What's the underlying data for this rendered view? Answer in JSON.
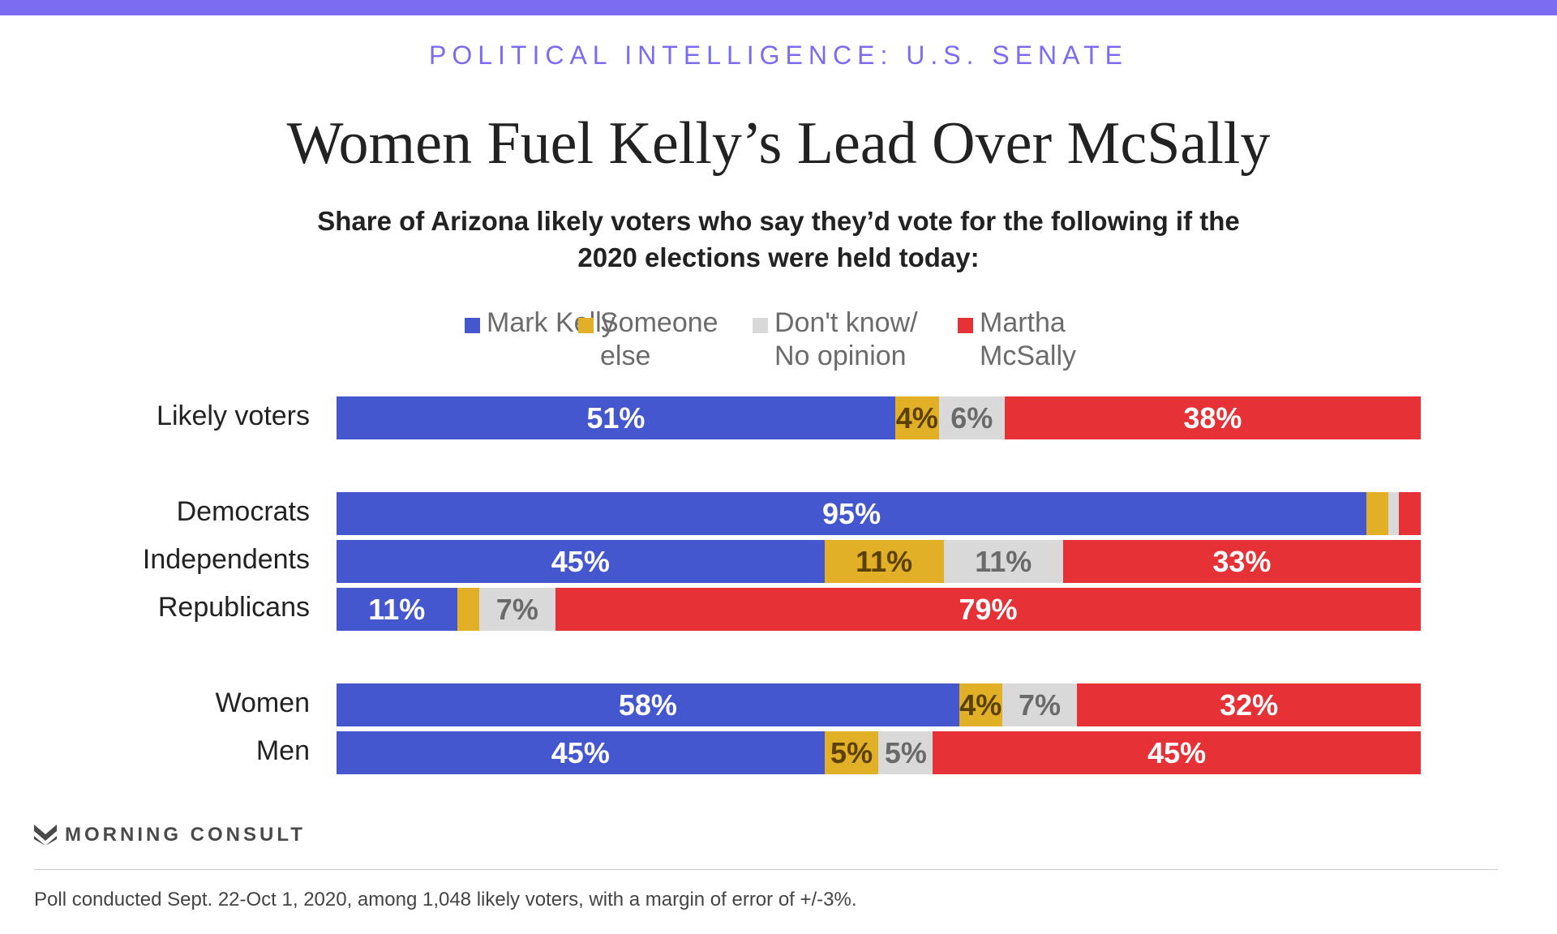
{
  "kicker": "POLITICAL INTELLIGENCE: U.S. SENATE",
  "title": "Women Fuel Kelly’s Lead Over McSally",
  "subtitle": "Share of Arizona likely voters who say they’d vote for the following if the 2020 elections were held today:",
  "logo_text": "MORNING CONSULT",
  "footnote": "Poll conducted Sept. 22-Oct 1, 2020, among 1,048 likely voters, with a margin of error of +/-3%.",
  "colors": {
    "accent": "#7b6cf2",
    "kelly": "#4457ce",
    "someone_else": "#e2b026",
    "dont_know": "#d9d9d9",
    "mcsally": "#e63136"
  },
  "chart_data": {
    "type": "bar",
    "orientation": "horizontal-stacked",
    "legend_placement": "top",
    "grid": false,
    "xlim": [
      0,
      100
    ],
    "categories": [
      "Likely voters",
      "Democrats",
      "Independents",
      "Republicans",
      "Women",
      "Men"
    ],
    "series": [
      {
        "name": "Mark Kelly",
        "color": "#4457ce",
        "values": [
          51,
          95,
          45,
          11,
          58,
          45
        ],
        "labels": [
          "51%",
          "95%",
          "45%",
          "11%",
          "58%",
          "45%"
        ]
      },
      {
        "name": "Someone else",
        "color": "#e2b026",
        "values": [
          4,
          2,
          11,
          2,
          4,
          5
        ],
        "labels": [
          "4%",
          "",
          "11%",
          "",
          "4%",
          "5%"
        ]
      },
      {
        "name": "Don't know/ No opinion",
        "color": "#d9d9d9",
        "values": [
          6,
          1,
          11,
          7,
          7,
          5
        ],
        "labels": [
          "6%",
          "",
          "11%",
          "7%",
          "7%",
          "5%"
        ]
      },
      {
        "name": "Martha McSally",
        "color": "#e63136",
        "values": [
          38,
          2,
          33,
          79,
          32,
          45
        ],
        "labels": [
          "38%",
          "",
          "33%",
          "79%",
          "32%",
          "45%"
        ]
      }
    ]
  }
}
